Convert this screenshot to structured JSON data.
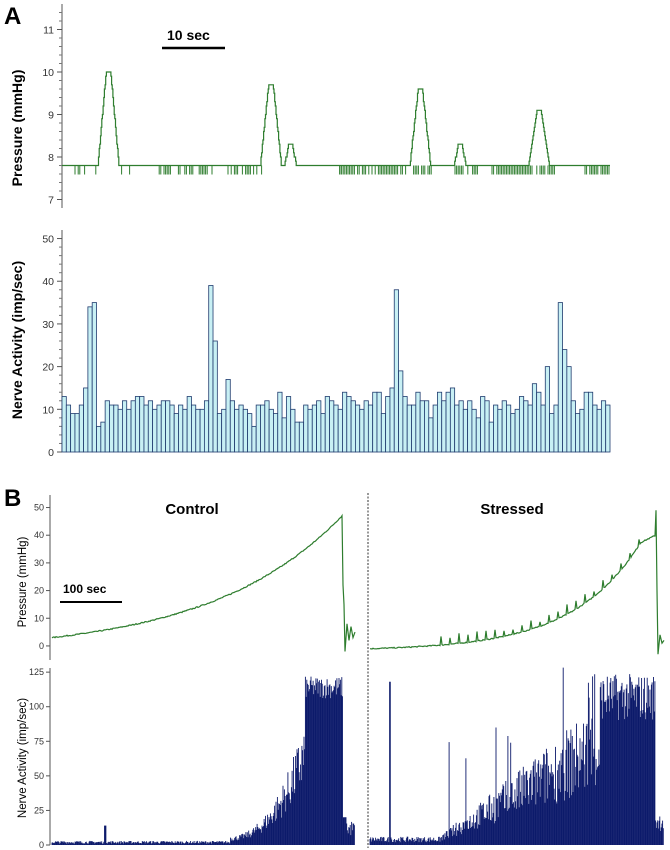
{
  "panel_labels": [
    "A",
    "B"
  ],
  "chart_data": [
    {
      "id": "A-pressure",
      "type": "line",
      "ylabel": "Pressure (mmHg)",
      "ylim": [
        6.8,
        11.6
      ],
      "yticks": [
        "7",
        "8",
        "9",
        "10",
        "11"
      ],
      "scale_bar": "10 sec",
      "duration_sec": 84,
      "baseline": 7.8,
      "peaks": [
        {
          "t": 7.1,
          "value": 10.0
        },
        {
          "t": 32.0,
          "value": 9.7
        },
        {
          "t": 35.0,
          "value": 8.3
        },
        {
          "t": 54.9,
          "value": 9.55
        },
        {
          "t": 61.0,
          "value": 8.3
        },
        {
          "t": 73.1,
          "value": 9.05
        }
      ],
      "color": "#2e7d2e"
    },
    {
      "id": "A-nerve",
      "type": "bar",
      "ylabel": "Nerve Activity (imp/sec)",
      "ylim": [
        0,
        52
      ],
      "yticks": [
        "0",
        "10",
        "20",
        "30",
        "40",
        "50"
      ],
      "values": [
        13,
        11,
        9,
        9,
        11,
        15,
        34,
        35,
        6,
        7,
        12,
        11,
        11,
        10,
        12,
        10,
        12,
        13,
        13,
        11,
        12,
        10,
        11,
        12,
        12,
        11,
        9,
        11,
        10,
        13,
        11,
        10,
        10,
        12,
        39,
        26,
        9,
        10,
        17,
        12,
        10,
        11,
        10,
        9,
        6,
        11,
        11,
        12,
        10,
        9,
        14,
        8,
        13,
        10,
        7,
        7,
        11,
        10,
        11,
        12,
        9,
        13,
        12,
        11,
        10,
        14,
        13,
        12,
        11,
        10,
        12,
        11,
        14,
        14,
        9,
        13,
        15,
        38,
        19,
        13,
        11,
        11,
        14,
        12,
        12,
        8,
        11,
        14,
        12,
        14,
        15,
        11,
        12,
        10,
        12,
        10,
        8,
        13,
        12,
        7,
        11,
        10,
        12,
        11,
        9,
        10,
        13,
        12,
        11,
        16,
        14,
        11,
        20,
        9,
        11,
        35,
        24,
        20,
        12,
        9,
        10,
        14,
        14,
        11,
        10,
        12,
        11
      ],
      "fill": "#c8f0f4",
      "stroke": "#1f3b6e"
    },
    {
      "id": "B-pressure-control",
      "type": "line",
      "title": "Control",
      "ylabel": "Pressure (mmHg)",
      "ylim": [
        -4,
        52
      ],
      "yticks": [
        "0",
        "10",
        "20",
        "30",
        "40",
        "50"
      ],
      "scale_bar": "100 sec",
      "start_value": 3,
      "peak_value": 47,
      "post_drop_value": 5,
      "color": "#2e7d2e"
    },
    {
      "id": "B-pressure-stressed",
      "type": "line",
      "title": "Stressed",
      "ylim": [
        -4,
        52
      ],
      "start_value": -1,
      "peak_value": 49,
      "post_drop_value": 2,
      "color": "#2e7d2e"
    },
    {
      "id": "B-nerve-control",
      "type": "area",
      "ylabel": "Nerve Activity (imp/sec)",
      "ylim": [
        0,
        128
      ],
      "yticks": [
        "0",
        "25",
        "50",
        "75",
        "100",
        "125"
      ],
      "plateau_value": 118,
      "color": "#0d1a6b"
    },
    {
      "id": "B-nerve-stressed",
      "type": "area",
      "ylim": [
        0,
        128
      ],
      "spike_value": 118,
      "plateau_value": 120,
      "color": "#0d1a6b"
    }
  ]
}
